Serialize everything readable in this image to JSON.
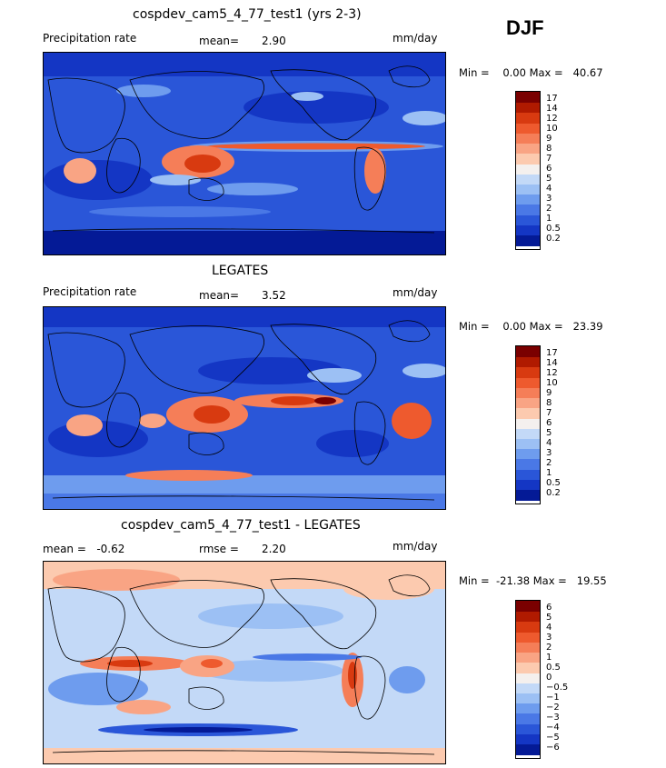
{
  "season": "DJF",
  "panels": [
    {
      "title": "cospdev_cam5_4_77_test1 (yrs 2-3)",
      "left_label": "Precipitation rate",
      "stat_label": "mean=",
      "stat_value": "2.90",
      "units": "mm/day",
      "minmax": "Min =    0.00 Max =   40.67"
    },
    {
      "title": "LEGATES",
      "left_label": "Precipitation rate",
      "stat_label": "mean=",
      "stat_value": "3.52",
      "units": "mm/day",
      "minmax": "Min =    0.00 Max =   23.39"
    },
    {
      "title": "cospdev_cam5_4_77_test1 - LEGATES",
      "left_label": "mean =   -0.62",
      "stat_label": "rmse =",
      "stat_value": "2.20",
      "units": "mm/day",
      "minmax": "Min =  -21.38 Max =   19.55"
    }
  ],
  "chart_data": [
    {
      "type": "heatmap",
      "title": "cospdev_cam5_4_77_test1 (yrs 2-3)",
      "variable": "Precipitation rate",
      "units": "mm/day",
      "mean": 2.9,
      "min": 0.0,
      "max": 40.67,
      "levels": [
        "17",
        "14",
        "12",
        "10",
        "9",
        "8",
        "7",
        "6",
        "5",
        "4",
        "3",
        "2",
        "1",
        "0.5",
        "0.2"
      ]
    },
    {
      "type": "heatmap",
      "title": "LEGATES",
      "variable": "Precipitation rate",
      "units": "mm/day",
      "mean": 3.52,
      "min": 0.0,
      "max": 23.39,
      "levels": [
        "17",
        "14",
        "12",
        "10",
        "9",
        "8",
        "7",
        "6",
        "5",
        "4",
        "3",
        "2",
        "1",
        "0.5",
        "0.2"
      ]
    },
    {
      "type": "heatmap",
      "title": "cospdev_cam5_4_77_test1 - LEGATES",
      "units": "mm/day",
      "mean": -0.62,
      "rmse": 2.2,
      "min": -21.38,
      "max": 19.55,
      "levels": [
        "6",
        "5",
        "4",
        "3",
        "2",
        "1",
        "0.5",
        "0",
        "−0.5",
        "−1",
        "−2",
        "−3",
        "−4",
        "−5",
        "−6"
      ]
    }
  ],
  "colors": {
    "abs_scale": [
      "#7a0000",
      "#b01a00",
      "#d83a10",
      "#ee5a2e",
      "#f57e58",
      "#f9a484",
      "#fccaaf",
      "#f4f0ee",
      "#c3d9f7",
      "#9cc0f4",
      "#6e9cee",
      "#4a78e6",
      "#2a56d8",
      "#1436c4",
      "#041a96"
    ],
    "diff_scale": [
      "#7a0000",
      "#b01a00",
      "#d83a10",
      "#ee5a2e",
      "#f57e58",
      "#f9a484",
      "#fccaaf",
      "#f4f0ee",
      "#c3d9f7",
      "#9cc0f4",
      "#6e9cee",
      "#4a78e6",
      "#2a56d8",
      "#1436c4",
      "#041a96"
    ]
  }
}
